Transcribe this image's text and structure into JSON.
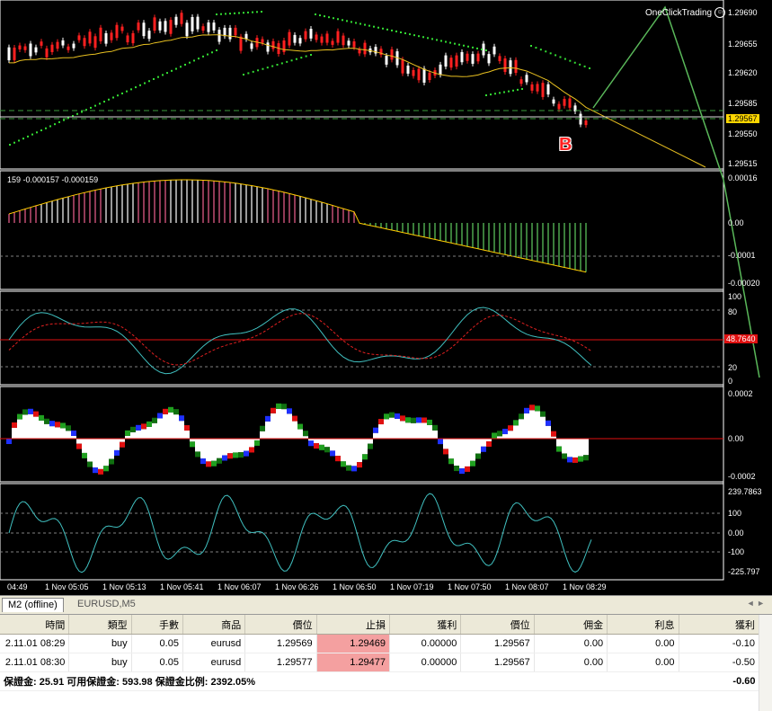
{
  "header": {
    "one_click_label": "OneClickTrading",
    "smile_icon": "smile-icon"
  },
  "marker": {
    "label": "B"
  },
  "price_axis": {
    "labels": [
      "1.29690",
      "1.29655",
      "1.29620",
      "1.29585",
      "1.29550",
      "1.29515"
    ],
    "current": "1.29567"
  },
  "macd": {
    "top_label": "159 -0.000157 -0.000159",
    "axis": [
      "0.00016",
      "0.00",
      "-0.0001",
      "-0.00020"
    ]
  },
  "rsi": {
    "axis": [
      "100",
      "80",
      "20",
      "0"
    ],
    "current": "48.7640"
  },
  "osc": {
    "axis": [
      "0.0002",
      "0.00",
      "-0.0002"
    ]
  },
  "cci": {
    "axis": [
      "239.7863",
      "100",
      "0.00",
      "-100",
      "-225.797"
    ]
  },
  "time_axis": [
    "04:49",
    "1 Nov 05:05",
    "1 Nov 05:13",
    "1 Nov 05:41",
    "1 Nov 06:07",
    "1 Nov 06:26",
    "1 Nov 06:50",
    "1 Nov 07:19",
    "1 Nov 07:50",
    "1 Nov 08:07",
    "1 Nov 08:29"
  ],
  "tabs": [
    {
      "label": "M2 (offline)",
      "active": true
    },
    {
      "label": "EURUSD,M5",
      "active": false
    }
  ],
  "table": {
    "headers": [
      "時間",
      "類型",
      "手數",
      "商品",
      "價位",
      "止損",
      "獲利",
      "價位",
      "佣金",
      "利息",
      "獲利"
    ],
    "rows": [
      [
        "2.11.01 08:29",
        "buy",
        "0.05",
        "eurusd",
        "1.29569",
        "1.29469",
        "0.00000",
        "1.29567",
        "0.00",
        "0.00",
        "-0.10"
      ],
      [
        "2.11.01 08:30",
        "buy",
        "0.05",
        "eurusd",
        "1.29577",
        "1.29477",
        "0.00000",
        "1.29567",
        "0.00",
        "0.00",
        "-0.50"
      ]
    ],
    "summary": "保證金: 25.91  可用保證金: 593.98  保證金比例: 2392.05%",
    "summary_total": "-0.60"
  },
  "colors": {
    "bull": "#ffffff",
    "bear": "#ff2020",
    "dots": "#33dd33",
    "ma": "#e8c020",
    "grid": "#808080",
    "stop_loss_cell": "#f4a0a0"
  }
}
